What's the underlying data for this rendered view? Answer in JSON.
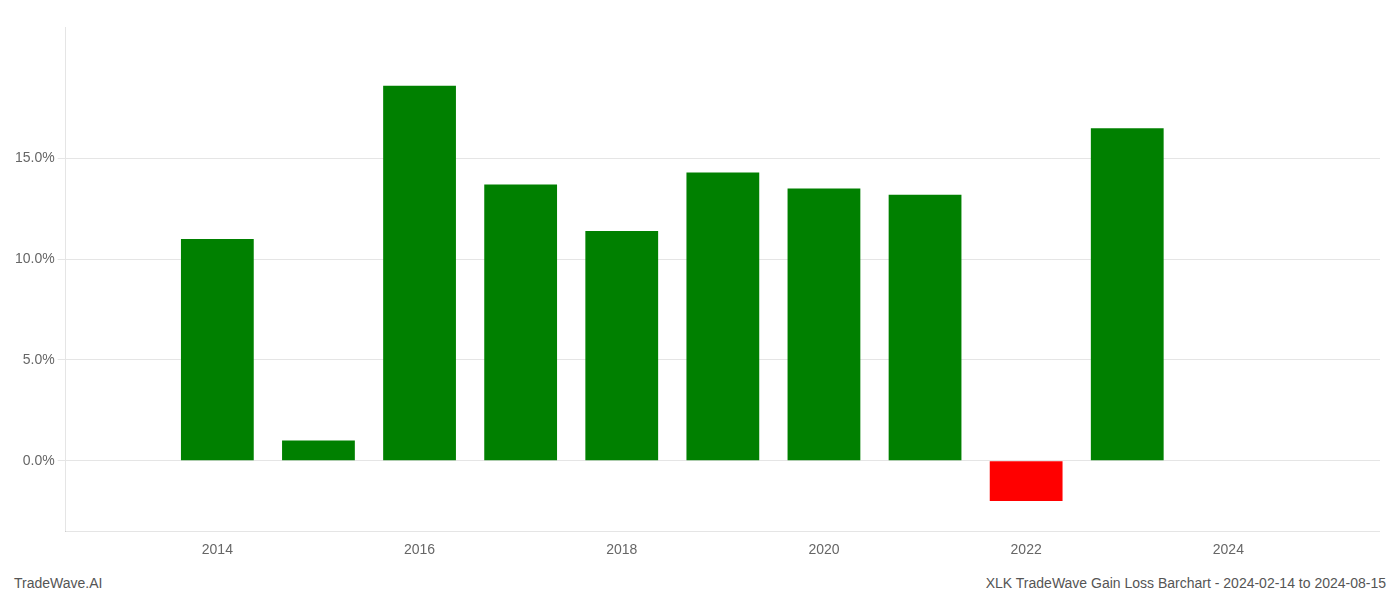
{
  "chart_data": {
    "type": "bar",
    "x": [
      2014,
      2015,
      2016,
      2017,
      2018,
      2019,
      2020,
      2021,
      2022,
      2023
    ],
    "values": [
      11.0,
      1.0,
      18.6,
      13.7,
      11.4,
      14.3,
      13.5,
      13.2,
      -2.0,
      16.5
    ],
    "colors": [
      "#008000",
      "#008000",
      "#008000",
      "#008000",
      "#008000",
      "#008000",
      "#008000",
      "#008000",
      "#ff0000",
      "#008000"
    ],
    "xlim": [
      2012.5,
      2025.5
    ],
    "xticks": [
      2014,
      2016,
      2018,
      2020,
      2022,
      2024
    ],
    "ylim": [
      -3.5,
      21.5
    ],
    "yticks": [
      {
        "value": 0.0,
        "label": "0.0%"
      },
      {
        "value": 5.0,
        "label": "5.0%"
      },
      {
        "value": 10.0,
        "label": "10.0%"
      },
      {
        "value": 15.0,
        "label": "15.0%"
      }
    ],
    "grid": true,
    "annotations": [
      "TradeWave.AI",
      "XLK TradeWave Gain Loss Barchart - 2024-02-14 to 2024-08-15"
    ]
  }
}
